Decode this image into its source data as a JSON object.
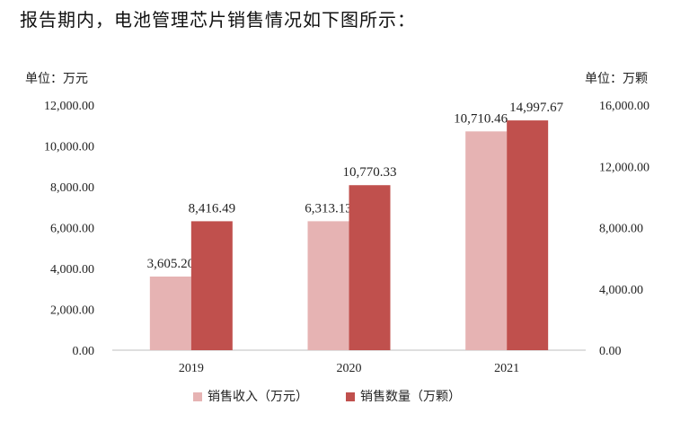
{
  "intro_text": "报告期内，电池管理芯片销售情况如下图所示：",
  "colors": {
    "revenue": "#e6b3b3",
    "quantity": "#c0504d",
    "axis": "#bfbfbf"
  },
  "chart_data": {
    "type": "bar",
    "title": "",
    "categories": [
      "2019",
      "2020",
      "2021"
    ],
    "series": [
      {
        "name": "销售收入（万元）",
        "axis": "left",
        "values": [
          3605.2,
          6313.13,
          10710.46
        ],
        "labels": [
          "3,605.20",
          "6,313.13",
          "10,710.46"
        ]
      },
      {
        "name": "销售数量（万颗）",
        "axis": "right",
        "values": [
          8416.49,
          10770.33,
          14997.67
        ],
        "labels": [
          "8,416.49",
          "10,770.33",
          "14,997.67"
        ]
      }
    ],
    "y_left": {
      "unit_label": "单位：万元",
      "ylim": [
        0,
        12000
      ],
      "ticks": [
        "0.00",
        "2,000.00",
        "4,000.00",
        "6,000.00",
        "8,000.00",
        "10,000.00",
        "12,000.00"
      ]
    },
    "y_right": {
      "unit_label": "单位：万颗",
      "ylim": [
        0,
        16000
      ],
      "ticks": [
        "0.00",
        "4,000.00",
        "8,000.00",
        "12,000.00",
        "16,000.00"
      ]
    },
    "grid": false,
    "legend_position": "bottom"
  }
}
